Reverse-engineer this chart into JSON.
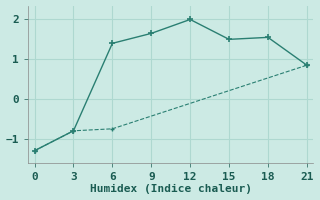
{
  "line1_x": [
    0,
    3,
    6,
    9,
    12,
    15,
    18,
    21
  ],
  "line1_y": [
    -1.3,
    -0.8,
    1.4,
    1.65,
    2.0,
    1.5,
    1.55,
    0.85
  ],
  "line2_x": [
    0,
    3,
    6,
    21
  ],
  "line2_y": [
    -1.3,
    -0.8,
    -0.75,
    0.85
  ],
  "line_color": "#2a7f72",
  "bg_color": "#cceae4",
  "grid_color": "#aed8d0",
  "xlabel": "Humidex (Indice chaleur)",
  "xlim": [
    -0.5,
    21.5
  ],
  "ylim": [
    -1.6,
    2.35
  ],
  "xticks": [
    0,
    3,
    6,
    9,
    12,
    15,
    18,
    21
  ],
  "yticks": [
    -1,
    0,
    1,
    2
  ],
  "font_size": 8,
  "label_font_size": 8
}
